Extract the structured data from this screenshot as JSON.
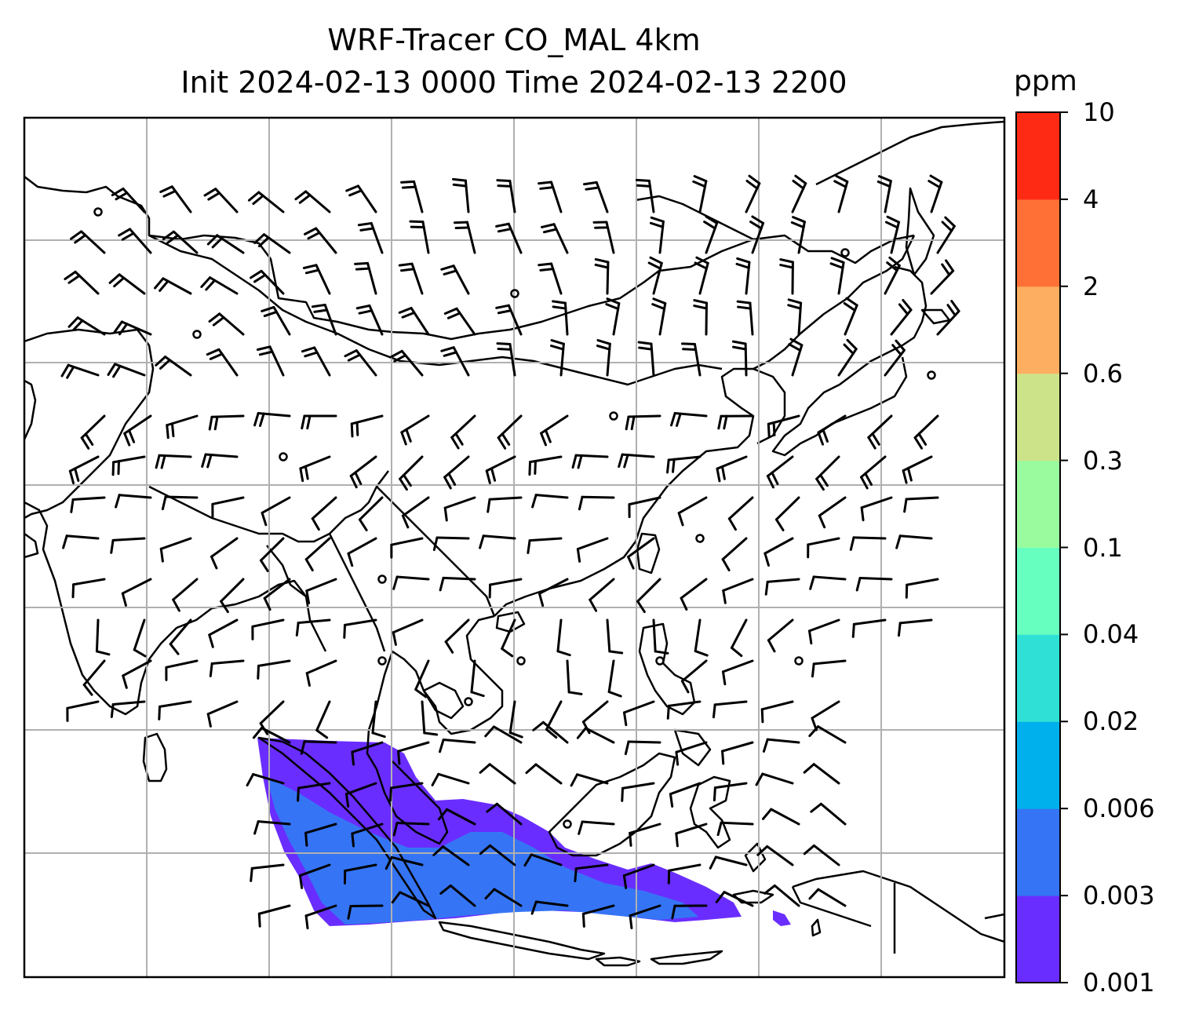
{
  "title": {
    "line1": "WRF-Tracer CO_MAL 4km",
    "line2": "Init 2024-02-13 0000 Time 2024-02-13 2200"
  },
  "colorbar": {
    "unit": "ppm",
    "levels": [
      "0.001",
      "0.003",
      "0.006",
      "0.02",
      "0.04",
      "0.1",
      "0.3",
      "0.6",
      "2",
      "4",
      "10"
    ],
    "colors": [
      "#6a2dff",
      "#3575f5",
      "#00b0ec",
      "#2fe0d6",
      "#66ffc0",
      "#99fb9e",
      "#cde389",
      "#fdae61",
      "#ff7036",
      "#ff2a14"
    ]
  },
  "map": {
    "gridlines": true,
    "coastline_color": "#000000",
    "grid_color": "#b0b0b0",
    "plume_levels_present": [
      "0.001",
      "0.003"
    ]
  }
}
